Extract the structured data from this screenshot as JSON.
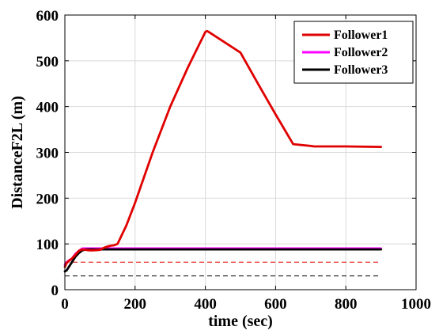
{
  "colors": {
    "Follower1": "#e00000",
    "Follower2": "#ff00ff",
    "Follower3": "#000000",
    "grid": "#d9d9d9",
    "axis": "#000000"
  },
  "chart_data": {
    "type": "line",
    "xlabel": "time (sec)",
    "ylabel": "DistanceF2L (m)",
    "xlim": [
      0,
      1000
    ],
    "ylim": [
      0,
      600
    ],
    "xticks": [
      0,
      200,
      400,
      600,
      800,
      1000
    ],
    "yticks": [
      0,
      100,
      200,
      300,
      400,
      500,
      600
    ],
    "x_tick_labels": [
      "0",
      "200",
      "400",
      "600",
      "800",
      "1000"
    ],
    "y_tick_labels": [
      "0",
      "100",
      "200",
      "300",
      "400",
      "500",
      "600"
    ],
    "grid": true,
    "legend_position": "top-right",
    "legend": [
      "Follower1",
      "Follower2",
      "Follower3"
    ],
    "series": [
      {
        "name": "Follower1",
        "color": "#e00000",
        "x": [
          0,
          5,
          10,
          20,
          30,
          40,
          50,
          60,
          70,
          80,
          100,
          110,
          120,
          130,
          140,
          150,
          175,
          200,
          250,
          300,
          350,
          400,
          405,
          410,
          500,
          550,
          600,
          650,
          700,
          710,
          800,
          900
        ],
        "y": [
          50,
          58,
          62,
          68,
          76,
          85,
          88,
          87,
          86,
          86,
          87,
          91,
          94,
          96,
          97,
          100,
          140,
          190,
          300,
          400,
          485,
          563,
          565,
          563,
          518,
          450,
          383,
          318,
          314,
          313,
          313,
          312
        ]
      },
      {
        "name": "Follower2",
        "color": "#ff00ff",
        "x": [
          0,
          5,
          10,
          20,
          30,
          40,
          50,
          60,
          80,
          100,
          900
        ],
        "y": [
          55,
          60,
          63,
          68,
          78,
          85,
          90,
          90,
          90,
          90,
          90
        ]
      },
      {
        "name": "Follower3",
        "color": "#000000",
        "x": [
          0,
          5,
          10,
          20,
          30,
          40,
          50,
          60,
          80,
          100,
          900
        ],
        "y": [
          40,
          42,
          48,
          60,
          72,
          80,
          86,
          88,
          88,
          88,
          88
        ]
      }
    ],
    "reference_lines": [
      {
        "y": 60,
        "style": "dashed",
        "color": "#e00000",
        "x_start": 0,
        "x_end": 900
      },
      {
        "y": 30,
        "style": "dashed",
        "color": "#000000",
        "x_start": 0,
        "x_end": 900
      }
    ]
  }
}
